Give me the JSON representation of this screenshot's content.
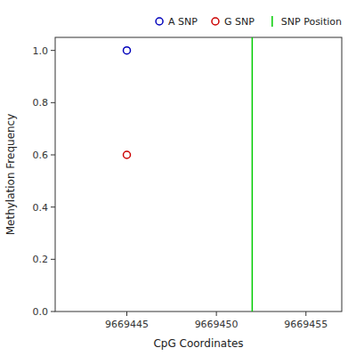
{
  "chart_data": {
    "type": "scatter",
    "xlabel": "CpG Coordinates",
    "ylabel": "Methylation Frequency",
    "series": [
      {
        "name": "A SNP",
        "color": "#0000BB",
        "marker": "circle",
        "x": [
          9669445
        ],
        "values": [
          1.0
        ]
      },
      {
        "name": "G SNP",
        "color": "#CC0000",
        "marker": "circle",
        "x": [
          9669445
        ],
        "values": [
          0.6
        ]
      },
      {
        "name": "SNP Position",
        "type": "vline",
        "color": "#00CC00",
        "x": [
          9669452
        ]
      }
    ],
    "xlim": [
      9669441,
      9669457
    ],
    "xticks": [
      9669445,
      9669450,
      9669455
    ],
    "ylim": [
      0.0,
      1.05
    ],
    "yticks": [
      {
        "value": 0.0,
        "label": "0.0"
      },
      0.2,
      0.4,
      0.6,
      0.8,
      {
        "value": 1.0,
        "label": "1.0"
      }
    ],
    "grid": false,
    "legend": "upper right"
  }
}
